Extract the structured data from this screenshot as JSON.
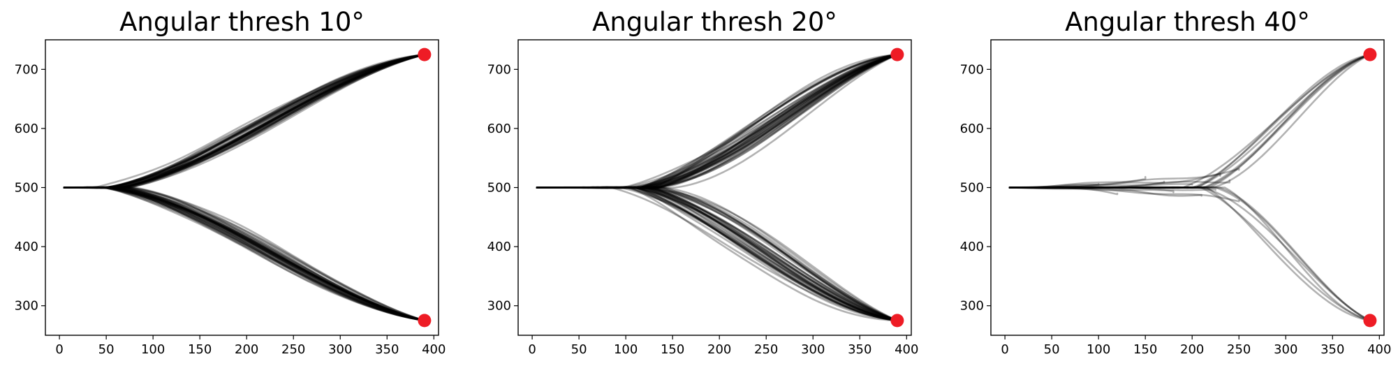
{
  "chart_data": [
    {
      "type": "line",
      "title": "Angular thresh 10°",
      "xlabel": "",
      "ylabel": "",
      "xlim": [
        -15,
        405
      ],
      "ylim": [
        250,
        750
      ],
      "xticks": [
        0,
        50,
        100,
        150,
        200,
        250,
        300,
        350,
        400
      ],
      "yticks": [
        300,
        400,
        500,
        600,
        700
      ],
      "trajectory_start": [
        5,
        500
      ],
      "targets": [
        {
          "x": 390,
          "y": 725,
          "color": "#ee1c25"
        },
        {
          "x": 390,
          "y": 275,
          "color": "#ee1c25"
        }
      ],
      "trajectory_color": "#000000",
      "trajectory_opacity": 0.3,
      "branches": [
        {
          "target_y": 725,
          "split_x": 60,
          "count": 40,
          "spread": 25
        },
        {
          "target_y": 275,
          "split_x": 60,
          "count": 40,
          "spread": 25
        }
      ],
      "truncated_trajectories": [],
      "grid": false
    },
    {
      "type": "line",
      "title": "Angular thresh 20°",
      "xlabel": "",
      "ylabel": "",
      "xlim": [
        -15,
        405
      ],
      "ylim": [
        250,
        750
      ],
      "xticks": [
        0,
        50,
        100,
        150,
        200,
        250,
        300,
        350,
        400
      ],
      "yticks": [
        300,
        400,
        500,
        600,
        700
      ],
      "trajectory_start": [
        5,
        500
      ],
      "targets": [
        {
          "x": 390,
          "y": 725,
          "color": "#ee1c25"
        },
        {
          "x": 390,
          "y": 275,
          "color": "#ee1c25"
        }
      ],
      "trajectory_color": "#000000",
      "trajectory_opacity": 0.3,
      "branches": [
        {
          "target_y": 725,
          "split_x": 120,
          "count": 40,
          "spread": 40
        },
        {
          "target_y": 275,
          "split_x": 120,
          "count": 40,
          "spread": 40
        }
      ],
      "truncated_trajectories": [],
      "grid": false
    },
    {
      "type": "line",
      "title": "Angular thresh 40°",
      "xlabel": "",
      "ylabel": "",
      "xlim": [
        -15,
        405
      ],
      "ylim": [
        250,
        750
      ],
      "xticks": [
        0,
        50,
        100,
        150,
        200,
        250,
        300,
        350,
        400
      ],
      "yticks": [
        300,
        400,
        500,
        600,
        700
      ],
      "trajectory_start": [
        5,
        500
      ],
      "targets": [
        {
          "x": 390,
          "y": 725,
          "color": "#ee1c25"
        },
        {
          "x": 390,
          "y": 275,
          "color": "#ee1c25"
        }
      ],
      "trajectory_color": "#000000",
      "trajectory_opacity": 0.3,
      "branches": [
        {
          "target_y": 725,
          "split_x": 215,
          "count": 8,
          "spread": 30
        },
        {
          "target_y": 275,
          "split_x": 215,
          "count": 6,
          "spread": 25
        }
      ],
      "truncated_trajectories": [
        {
          "end_x": 150,
          "end_y": 518
        },
        {
          "end_x": 120,
          "end_y": 490
        },
        {
          "end_x": 200,
          "end_y": 505
        },
        {
          "end_x": 230,
          "end_y": 520
        },
        {
          "end_x": 250,
          "end_y": 478
        },
        {
          "end_x": 240,
          "end_y": 512
        },
        {
          "end_x": 250,
          "end_y": 530
        },
        {
          "end_x": 180,
          "end_y": 492
        },
        {
          "end_x": 210,
          "end_y": 486
        },
        {
          "end_x": 170,
          "end_y": 510
        },
        {
          "end_x": 100,
          "end_y": 506
        },
        {
          "end_x": 225,
          "end_y": 496
        }
      ],
      "grid": false
    }
  ]
}
